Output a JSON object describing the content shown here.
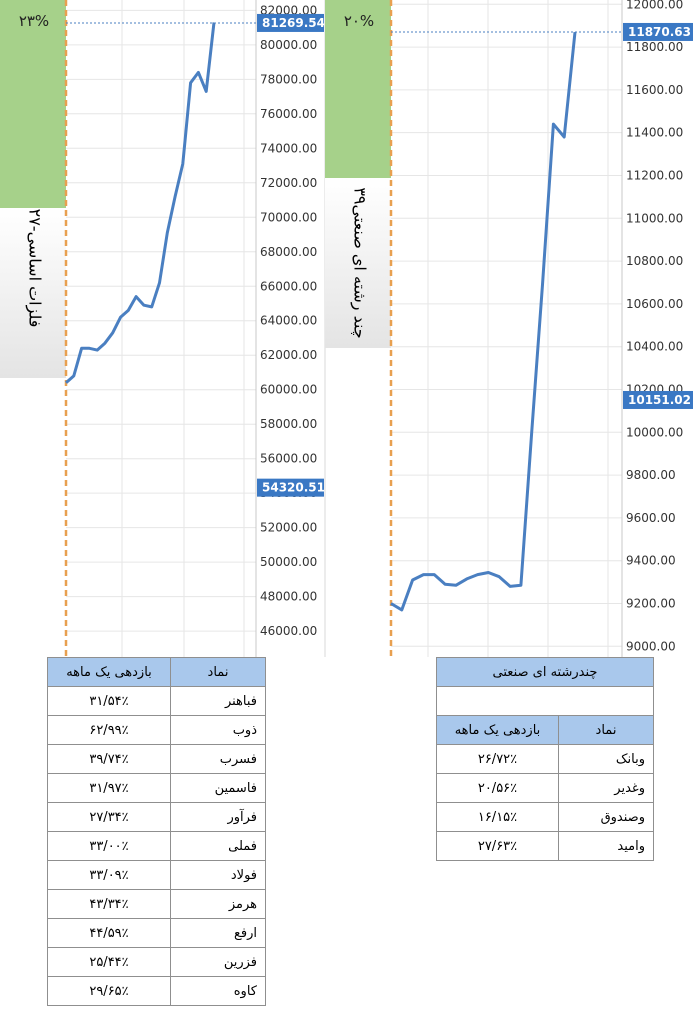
{
  "chart_data": [
    {
      "type": "line",
      "title": "۲۷-فلزات اساسی",
      "return_label": "۲۳%",
      "ylim": [
        44500,
        82600
      ],
      "yticks": [
        46000,
        48000,
        50000,
        52000,
        54000,
        56000,
        58000,
        60000,
        62000,
        64000,
        66000,
        68000,
        70000,
        72000,
        74000,
        76000,
        78000,
        80000,
        82000
      ],
      "tick_labels": [
        "46000.00",
        "48000.00",
        "50000.00",
        "52000.00",
        "54000.00",
        "56000.00",
        "58000.00",
        "60000.00",
        "62000.00",
        "64000.00",
        "66000.00",
        "68000.00",
        "70000.00",
        "72000.00",
        "74000.00",
        "76000.00",
        "78000.00",
        "80000.00",
        "82000.00"
      ],
      "series": [
        {
          "values": [
            60400,
            60800,
            62400,
            62400,
            62300,
            62700,
            63300,
            64200,
            64600,
            65400,
            64900,
            64800,
            66200,
            69100,
            71200,
            73100,
            77800,
            78400,
            77300,
            81300
          ]
        }
      ],
      "last_value_label": "81269.54",
      "last_value": 81269.54,
      "marker_label": "54320.51",
      "marker_value": 54320.51,
      "grid": true,
      "color": "#4a7fc1"
    },
    {
      "type": "line",
      "title": "۳۹چند رشته ای صنعتی",
      "return_label": "۲۰%",
      "ylim": [
        8950,
        12020
      ],
      "yticks": [
        9000,
        9200,
        9400,
        9600,
        9800,
        10000,
        10200,
        10400,
        10600,
        10800,
        11000,
        11200,
        11400,
        11600,
        11800,
        12000
      ],
      "tick_labels": [
        "9000.00",
        "9200.00",
        "9400.00",
        "9600.00",
        "9800.00",
        "10000.00",
        "10200.00",
        "10400.00",
        "10600.00",
        "10800.00",
        "11000.00",
        "11200.00",
        "11400.00",
        "11600.00",
        "11800.00",
        "12000.00"
      ],
      "series": [
        {
          "values": [
            9200,
            9170,
            9310,
            9335,
            9335,
            9290,
            9285,
            9315,
            9335,
            9345,
            9325,
            9280,
            9285,
            10000,
            10690,
            11440,
            11380,
            11870
          ]
        }
      ],
      "last_value_label": "11870.63",
      "last_value": 11870.63,
      "marker_label": "10151.02",
      "marker_value": 10151.02,
      "grid": true,
      "color": "#4a7fc1"
    }
  ],
  "table_left": {
    "header_symbol": "نماد",
    "header_return": "بازدهی یک ماهه",
    "rows": [
      {
        "symbol": "فباهنر",
        "value": "۳۱/۵۴٪"
      },
      {
        "symbol": "ذوب",
        "value": "۶۲/۹۹٪"
      },
      {
        "symbol": "فسرب",
        "value": "۳۹/۷۴٪"
      },
      {
        "symbol": "فاسمین",
        "value": "۳۱/۹۷٪"
      },
      {
        "symbol": "فرآور",
        "value": "۲۷/۳۴٪"
      },
      {
        "symbol": "فملی",
        "value": "۳۳/۰۰٪"
      },
      {
        "symbol": "فولاد",
        "value": "۳۳/۰۹٪"
      },
      {
        "symbol": "هرمز",
        "value": "۴۳/۳۴٪"
      },
      {
        "symbol": "ارفع",
        "value": "۴۴/۵۹٪"
      },
      {
        "symbol": "فزرین",
        "value": "۲۵/۴۴٪"
      },
      {
        "symbol": "کاوه",
        "value": "۲۹/۶۵٪"
      }
    ]
  },
  "table_right": {
    "title": "چندرشته ای صنعتی",
    "header_symbol": "نماد",
    "header_return": "بازدهی یک ماهه",
    "rows": [
      {
        "symbol": "وبانک",
        "value": "۲۶/۷۲٪"
      },
      {
        "symbol": "وغدیر",
        "value": "۲۰/۵۶٪"
      },
      {
        "symbol": "وصندوق",
        "value": "۱۶/۱۵٪"
      },
      {
        "symbol": "وامید",
        "value": "۲۷/۶۳٪"
      }
    ]
  }
}
